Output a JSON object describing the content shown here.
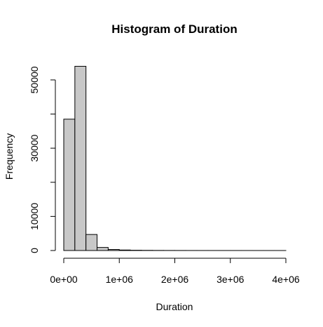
{
  "chart_data": {
    "type": "bar",
    "title": "Histogram of Duration",
    "xlabel": "Duration",
    "ylabel": "Frequency",
    "xlim": [
      0,
      4000000
    ],
    "ylim": [
      0,
      55000
    ],
    "grid": false,
    "fill_color": "#c8c8c8",
    "bin_width": 200000,
    "bins": [
      {
        "start": 0,
        "end": 200000,
        "count": 38500
      },
      {
        "start": 200000,
        "end": 400000,
        "count": 54000
      },
      {
        "start": 400000,
        "end": 600000,
        "count": 4700
      },
      {
        "start": 600000,
        "end": 800000,
        "count": 900
      },
      {
        "start": 800000,
        "end": 1000000,
        "count": 300
      },
      {
        "start": 1000000,
        "end": 1200000,
        "count": 150
      },
      {
        "start": 1200000,
        "end": 1400000,
        "count": 80
      },
      {
        "start": 1400000,
        "end": 1600000,
        "count": 50
      },
      {
        "start": 1600000,
        "end": 1800000,
        "count": 30
      },
      {
        "start": 1800000,
        "end": 2000000,
        "count": 20
      },
      {
        "start": 2000000,
        "end": 2200000,
        "count": 15
      },
      {
        "start": 2200000,
        "end": 2400000,
        "count": 10
      },
      {
        "start": 2400000,
        "end": 2600000,
        "count": 8
      },
      {
        "start": 2600000,
        "end": 2800000,
        "count": 6
      },
      {
        "start": 2800000,
        "end": 3000000,
        "count": 5
      },
      {
        "start": 3000000,
        "end": 3200000,
        "count": 4
      },
      {
        "start": 3200000,
        "end": 3400000,
        "count": 3
      },
      {
        "start": 3400000,
        "end": 3600000,
        "count": 2
      },
      {
        "start": 3600000,
        "end": 3800000,
        "count": 2
      },
      {
        "start": 3800000,
        "end": 4000000,
        "count": 1
      }
    ],
    "x_ticks": [
      {
        "value": 0,
        "label": "0e+00"
      },
      {
        "value": 1000000,
        "label": "1e+06"
      },
      {
        "value": 2000000,
        "label": "2e+06"
      },
      {
        "value": 3000000,
        "label": "3e+06"
      },
      {
        "value": 4000000,
        "label": "4e+06"
      }
    ],
    "y_ticks": [
      {
        "value": 0,
        "label": "0"
      },
      {
        "value": 10000,
        "label": "10000"
      },
      {
        "value": 30000,
        "label": "30000"
      },
      {
        "value": 50000,
        "label": "50000"
      }
    ],
    "y_ticks_unlabeled": [
      20000,
      40000
    ]
  }
}
